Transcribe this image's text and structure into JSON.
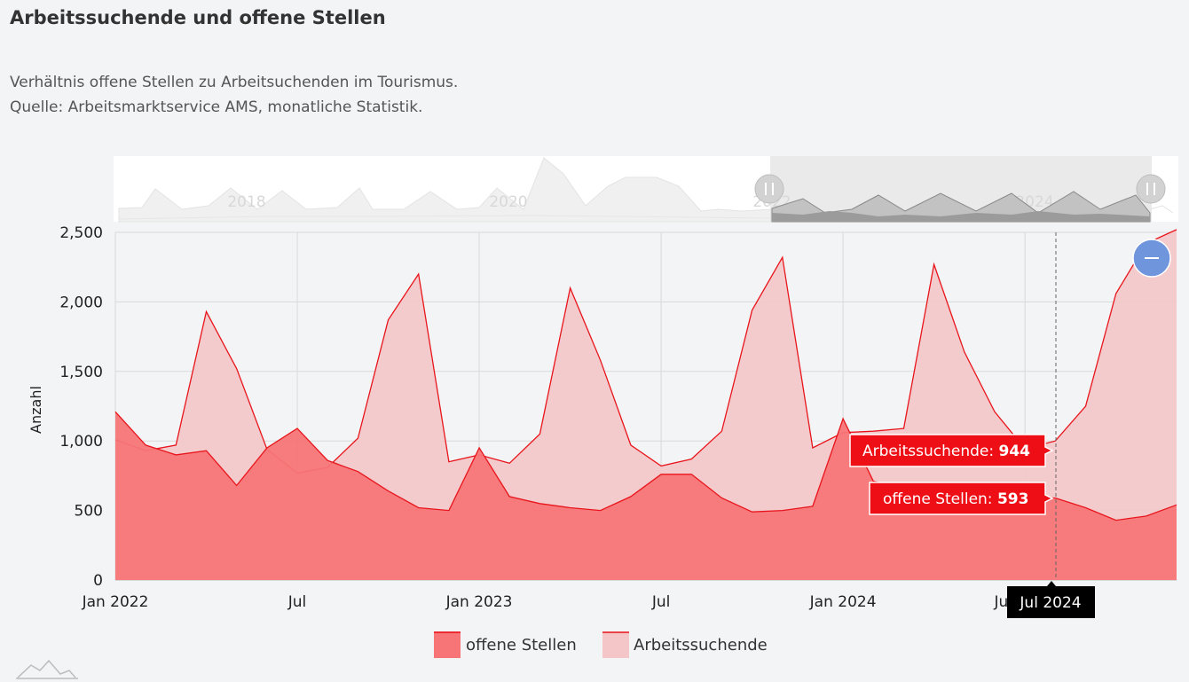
{
  "header": {
    "title": "Arbeitssuchende und offene Stellen",
    "subtitle_line1": "Verhältnis offene Stellen zu Arbeitsuchenden im Tourismus.",
    "subtitle_line2": "Quelle: Arbeitsmarktservice AMS, monatliche Statistik."
  },
  "colors": {
    "offene_stroke": "#e8151c",
    "offene_fill": "#f77577",
    "arbeit_fill": "#f4c6c8",
    "tooltip_bg": "#ee0e16",
    "zoom_button": "#6f95dd"
  },
  "tooltip": {
    "arbeit_label": "Arbeitssuchende: ",
    "arbeit_value": "944",
    "offene_label": "offene Stellen: ",
    "offene_value": "593",
    "crosshair_label": "Jul 2024"
  },
  "navigator": {
    "labels": [
      "2018",
      "2020",
      "2022",
      "2024"
    ]
  },
  "zoom_button": {
    "icon": "minus-icon"
  },
  "chart_data": {
    "type": "area",
    "title": "Arbeitssuchende und offene Stellen",
    "ylabel": "Anzahl",
    "ylim": [
      0,
      2500
    ],
    "y_ticks": [
      0,
      500,
      1000,
      1500,
      2000,
      2500
    ],
    "y_tick_labels": [
      "0",
      "500",
      "1,000",
      "1,500",
      "2,000",
      "2,500"
    ],
    "x_start": "2022-01",
    "x_ticks": [
      {
        "month": "2022-01",
        "label": "Jan 2022"
      },
      {
        "month": "2022-07",
        "label": "Jul"
      },
      {
        "month": "2023-01",
        "label": "Jan 2023"
      },
      {
        "month": "2023-07",
        "label": "Jul"
      },
      {
        "month": "2024-01",
        "label": "Jan 2024"
      },
      {
        "month": "2024-07",
        "label": "Jul 2024"
      }
    ],
    "grid": true,
    "legend_position": "bottom",
    "series": [
      {
        "name": "offene Stellen",
        "values": [
          {
            "x": "2022-01",
            "y": 1210
          },
          {
            "x": "2022-02",
            "y": 970
          },
          {
            "x": "2022-03",
            "y": 900
          },
          {
            "x": "2022-04",
            "y": 930
          },
          {
            "x": "2022-05",
            "y": 680
          },
          {
            "x": "2022-06",
            "y": 950
          },
          {
            "x": "2022-07",
            "y": 1090
          },
          {
            "x": "2022-08",
            "y": 860
          },
          {
            "x": "2022-09",
            "y": 780
          },
          {
            "x": "2022-10",
            "y": 640
          },
          {
            "x": "2022-11",
            "y": 520
          },
          {
            "x": "2022-12",
            "y": 500
          },
          {
            "x": "2023-01",
            "y": 950
          },
          {
            "x": "2023-02",
            "y": 600
          },
          {
            "x": "2023-03",
            "y": 550
          },
          {
            "x": "2023-04",
            "y": 520
          },
          {
            "x": "2023-05",
            "y": 500
          },
          {
            "x": "2023-06",
            "y": 600
          },
          {
            "x": "2023-07",
            "y": 760
          },
          {
            "x": "2023-08",
            "y": 760
          },
          {
            "x": "2023-09",
            "y": 590
          },
          {
            "x": "2023-10",
            "y": 490
          },
          {
            "x": "2023-11",
            "y": 500
          },
          {
            "x": "2023-12",
            "y": 530
          },
          {
            "x": "2024-01",
            "y": 1160
          },
          {
            "x": "2024-02",
            "y": 710
          },
          {
            "x": "2024-03",
            "y": 660
          },
          {
            "x": "2024-04",
            "y": 620
          },
          {
            "x": "2024-05",
            "y": 610
          },
          {
            "x": "2024-06",
            "y": 650
          },
          {
            "x": "2024-07",
            "y": 593
          },
          {
            "x": "2024-08",
            "y": 590
          },
          {
            "x": "2024-09",
            "y": 520
          },
          {
            "x": "2024-10",
            "y": 430
          },
          {
            "x": "2024-11",
            "y": 460
          },
          {
            "x": "2024-12",
            "y": 540
          }
        ]
      },
      {
        "name": "Arbeitssuchende",
        "values": [
          {
            "x": "2022-01",
            "y": 1010
          },
          {
            "x": "2022-02",
            "y": 930
          },
          {
            "x": "2022-03",
            "y": 970
          },
          {
            "x": "2022-04",
            "y": 1930
          },
          {
            "x": "2022-05",
            "y": 1520
          },
          {
            "x": "2022-06",
            "y": 940
          },
          {
            "x": "2022-07",
            "y": 770
          },
          {
            "x": "2022-08",
            "y": 810
          },
          {
            "x": "2022-09",
            "y": 1020
          },
          {
            "x": "2022-10",
            "y": 1870
          },
          {
            "x": "2022-11",
            "y": 2200
          },
          {
            "x": "2022-12",
            "y": 850
          },
          {
            "x": "2023-01",
            "y": 900
          },
          {
            "x": "2023-02",
            "y": 840
          },
          {
            "x": "2023-03",
            "y": 1050
          },
          {
            "x": "2023-04",
            "y": 2100
          },
          {
            "x": "2023-05",
            "y": 1580
          },
          {
            "x": "2023-06",
            "y": 970
          },
          {
            "x": "2023-07",
            "y": 820
          },
          {
            "x": "2023-08",
            "y": 870
          },
          {
            "x": "2023-09",
            "y": 1070
          },
          {
            "x": "2023-10",
            "y": 1940
          },
          {
            "x": "2023-11",
            "y": 2320
          },
          {
            "x": "2023-12",
            "y": 950
          },
          {
            "x": "2024-01",
            "y": 1060
          },
          {
            "x": "2024-02",
            "y": 1070
          },
          {
            "x": "2024-03",
            "y": 1090
          },
          {
            "x": "2024-04",
            "y": 2270
          },
          {
            "x": "2024-05",
            "y": 1640
          },
          {
            "x": "2024-06",
            "y": 1210
          },
          {
            "x": "2024-07",
            "y": 944
          },
          {
            "x": "2024-08",
            "y": 1000
          },
          {
            "x": "2024-09",
            "y": 1250
          },
          {
            "x": "2024-10",
            "y": 2060
          },
          {
            "x": "2024-11",
            "y": 2420
          },
          {
            "x": "2024-12",
            "y": 2520
          }
        ]
      }
    ]
  }
}
